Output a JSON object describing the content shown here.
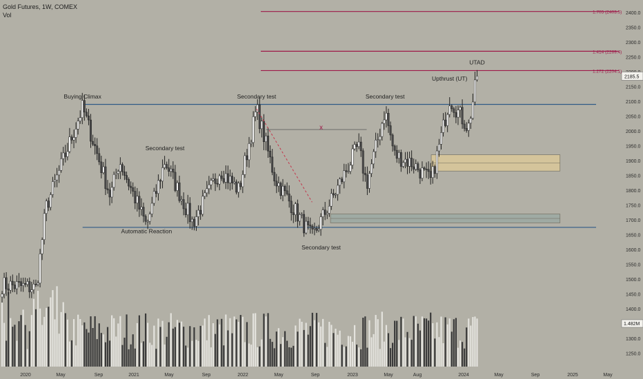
{
  "header": {
    "title": "Gold Futures, 1W, COMEX",
    "vol_label": "Vol"
  },
  "colors": {
    "background": "#b2b0a6",
    "up_candle": "#ffffff",
    "down_candle": "#4a4a4a",
    "range_line": "#2f5a86",
    "fib_line": "#9e1848",
    "supply_zone": "#d8c79a",
    "demand_zone": "#9eaaa3",
    "trend_dash": "#c4344a"
  },
  "chart_data": {
    "type": "candlestick",
    "symbol": "Gold Futures",
    "interval": "1W",
    "exchange": "COMEX",
    "ylim": [
      1205,
      2440
    ],
    "y_ticks": [
      1250,
      1300,
      1350,
      1400,
      1450,
      1500,
      1550,
      1600,
      1650,
      1700,
      1750,
      1800,
      1850,
      1900,
      1950,
      2000,
      2050,
      2100,
      2150,
      2200,
      2250,
      2300,
      2350,
      2400
    ],
    "x_axis_labels": [
      "2020",
      "May",
      "Sep",
      "2021",
      "May",
      "Sep",
      "2022",
      "May",
      "Sep",
      "2023",
      "May",
      "Aug",
      "2024",
      "May",
      "Sep",
      "2025",
      "May"
    ],
    "last_price": "2185.5",
    "volume_readout": "1.482M",
    "price_path_key_points": [
      {
        "date": "2019-12",
        "price": 1480
      },
      {
        "date": "2020-03",
        "price": 1470
      },
      {
        "date": "2020-04",
        "price": 1740
      },
      {
        "date": "2020-08",
        "price": 2080
      },
      {
        "date": "2020-11",
        "price": 1780
      },
      {
        "date": "2020-12",
        "price": 1900
      },
      {
        "date": "2021-03",
        "price": 1680
      },
      {
        "date": "2021-05",
        "price": 1900
      },
      {
        "date": "2021-08",
        "price": 1690
      },
      {
        "date": "2021-11",
        "price": 1870
      },
      {
        "date": "2022-01",
        "price": 1800
      },
      {
        "date": "2022-03",
        "price": 2075
      },
      {
        "date": "2022-05",
        "price": 1840
      },
      {
        "date": "2022-09",
        "price": 1640
      },
      {
        "date": "2022-11",
        "price": 1760
      },
      {
        "date": "2023-02",
        "price": 1950
      },
      {
        "date": "2023-03",
        "price": 1820
      },
      {
        "date": "2023-05",
        "price": 2070
      },
      {
        "date": "2023-06",
        "price": 1920
      },
      {
        "date": "2023-08",
        "price": 1890
      },
      {
        "date": "2023-10",
        "price": 1830
      },
      {
        "date": "2023-12",
        "price": 2110
      },
      {
        "date": "2024-02",
        "price": 2010
      },
      {
        "date": "2024-03",
        "price": 2185.5
      }
    ],
    "horizontal_levels": [
      {
        "price": 2090,
        "label": "",
        "role": "range-top"
      },
      {
        "price": 1675,
        "label": "",
        "role": "range-bottom"
      },
      {
        "price": 2204.1,
        "label": "1.272 (2204.1)"
      },
      {
        "price": 2269.4,
        "label": "1.414 (2269.4)"
      },
      {
        "price": 2403.5,
        "label": "1.705 (2403.5)"
      }
    ],
    "zones": [
      {
        "price_low": 1865,
        "price_high": 1920,
        "start": "2023-10",
        "end": "2024-12"
      },
      {
        "price_low": 1690,
        "price_high": 1720,
        "start": "2022-11",
        "end": "2024-12"
      }
    ],
    "annotations": [
      {
        "text": "Buying Climax",
        "date": "2020-08",
        "price": 2110
      },
      {
        "text": "Automatic Reaction",
        "date": "2021-03",
        "price": 1655
      },
      {
        "text": "Secondary test",
        "date": "2021-05",
        "price": 1935
      },
      {
        "text": "Secondary test",
        "date": "2022-03",
        "price": 2110
      },
      {
        "text": "Secondary test",
        "date": "2022-10",
        "price": 1600
      },
      {
        "text": "Secondary test",
        "date": "2023-05",
        "price": 2110
      },
      {
        "text": "Upthrust (UT)",
        "date": "2023-12",
        "price": 2170
      },
      {
        "text": "UTAD",
        "date": "2024-03",
        "price": 2225
      },
      {
        "text": "x",
        "date": "2022-10",
        "price": 2005
      }
    ]
  }
}
